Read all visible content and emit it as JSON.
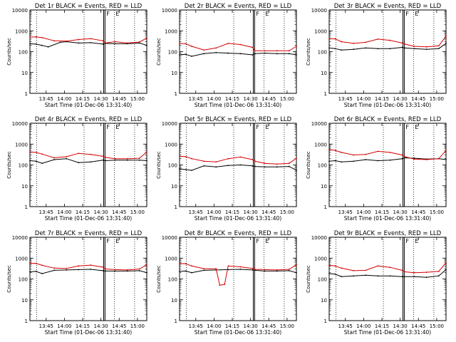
{
  "figure": {
    "ylabel": "Counts/sec",
    "xlabel": "Start Time (01-Dec-06 13:31:40)",
    "time_tick_labels": [
      "13:45",
      "14:00",
      "14:15",
      "14:30",
      "14:45",
      "15:00"
    ],
    "time_tick_minutes": [
      13.33,
      28.33,
      43.33,
      58.33,
      73.33,
      88.33
    ],
    "x_range_minutes": [
      0,
      96
    ],
    "y_tick_labels": [
      "1",
      "10",
      "100",
      "1000",
      "10000"
    ],
    "y_tick_values": [
      1,
      10,
      100,
      1000,
      10000
    ],
    "y_scale": "log",
    "series_colors": {
      "events": "#000000",
      "lld": "#d40000"
    },
    "markers": {
      "dotted_minutes": [
        5.5,
        44.5,
        69.3,
        86
      ],
      "solid_double_minutes": [
        60.6,
        61.7
      ],
      "flag_labels": [
        "F",
        "E"
      ]
    }
  },
  "chart_data": [
    {
      "type": "line",
      "title": "Det 1r BLACK = Events, RED = LLD",
      "ylim": [
        1,
        10000
      ],
      "xlabel": "Start Time (01-Dec-06 13:31:40)",
      "ylabel": "Counts/sec",
      "series": [
        {
          "name": "Events",
          "x": [
            0,
            5,
            10,
            15,
            25,
            30,
            40,
            50,
            60,
            62,
            70,
            80,
            90,
            96
          ],
          "y": [
            240,
            230,
            200,
            170,
            280,
            300,
            260,
            270,
            230,
            250,
            240,
            240,
            260,
            200
          ]
        },
        {
          "name": "LLD",
          "x": [
            0,
            5,
            10,
            20,
            30,
            40,
            50,
            60,
            62,
            70,
            80,
            90,
            96
          ],
          "y": [
            500,
            510,
            470,
            330,
            320,
            380,
            420,
            330,
            260,
            300,
            260,
            290,
            450
          ]
        }
      ]
    },
    {
      "type": "line",
      "title": "Det 2r BLACK = Events, RED = LLD",
      "ylim": [
        1,
        10000
      ],
      "xlabel": "Start Time (01-Dec-06 13:31:40)",
      "ylabel": "Counts/sec",
      "series": [
        {
          "name": "Events",
          "x": [
            0,
            5,
            10,
            20,
            30,
            40,
            50,
            60,
            62,
            70,
            80,
            90,
            96
          ],
          "y": [
            70,
            75,
            60,
            80,
            90,
            85,
            80,
            70,
            80,
            85,
            80,
            80,
            70
          ]
        },
        {
          "name": "LLD",
          "x": [
            0,
            5,
            10,
            20,
            30,
            40,
            50,
            60,
            62,
            70,
            80,
            90,
            96
          ],
          "y": [
            250,
            240,
            180,
            120,
            150,
            250,
            220,
            160,
            110,
            110,
            110,
            110,
            180
          ]
        }
      ]
    },
    {
      "type": "line",
      "title": "Det 3r BLACK = Events, RED = LLD",
      "ylim": [
        1,
        10000
      ],
      "xlabel": "Start Time (01-Dec-06 13:31:40)",
      "ylabel": "Counts/sec",
      "series": [
        {
          "name": "Events",
          "x": [
            0,
            5,
            10,
            20,
            30,
            40,
            50,
            60,
            62,
            70,
            80,
            90,
            96
          ],
          "y": [
            150,
            140,
            120,
            130,
            150,
            140,
            140,
            160,
            150,
            140,
            130,
            140,
            250
          ]
        },
        {
          "name": "LLD",
          "x": [
            0,
            5,
            10,
            20,
            30,
            40,
            50,
            60,
            62,
            70,
            80,
            90,
            96
          ],
          "y": [
            420,
            410,
            300,
            250,
            280,
            400,
            350,
            260,
            230,
            180,
            170,
            190,
            550
          ]
        }
      ]
    },
    {
      "type": "line",
      "title": "Det 4r BLACK = Events, RED = LLD",
      "ylim": [
        1,
        10000
      ],
      "xlabel": "Start Time (01-Dec-06 13:31:40)",
      "ylabel": "Counts/sec",
      "series": [
        {
          "name": "Events",
          "x": [
            0,
            5,
            10,
            20,
            30,
            40,
            50,
            60,
            62,
            70,
            80,
            90,
            96
          ],
          "y": [
            160,
            150,
            120,
            180,
            200,
            130,
            140,
            170,
            160,
            170,
            170,
            170,
            160
          ]
        },
        {
          "name": "LLD",
          "x": [
            0,
            5,
            10,
            20,
            30,
            40,
            50,
            60,
            62,
            70,
            80,
            90,
            96
          ],
          "y": [
            420,
            400,
            330,
            220,
            250,
            360,
            320,
            260,
            230,
            200,
            200,
            210,
            420
          ]
        }
      ]
    },
    {
      "type": "line",
      "title": "Det 5r BLACK = Events, RED = LLD",
      "ylim": [
        1,
        10000
      ],
      "xlabel": "Start Time (01-Dec-06 13:31:40)",
      "ylabel": "Counts/sec",
      "series": [
        {
          "name": "Events",
          "x": [
            0,
            5,
            10,
            20,
            30,
            40,
            50,
            60,
            62,
            70,
            80,
            90,
            96
          ],
          "y": [
            65,
            60,
            55,
            90,
            80,
            95,
            100,
            90,
            85,
            80,
            80,
            85,
            55
          ]
        },
        {
          "name": "LLD",
          "x": [
            0,
            5,
            10,
            20,
            30,
            40,
            50,
            60,
            62,
            70,
            80,
            90,
            96
          ],
          "y": [
            260,
            250,
            200,
            150,
            140,
            200,
            240,
            180,
            150,
            120,
            110,
            120,
            210
          ]
        }
      ]
    },
    {
      "type": "line",
      "title": "Det 6r BLACK = Events, RED = LLD",
      "ylim": [
        1,
        10000
      ],
      "xlabel": "Start Time (01-Dec-06 13:31:40)",
      "ylabel": "Counts/sec",
      "series": [
        {
          "name": "Events",
          "x": [
            0,
            5,
            10,
            20,
            30,
            40,
            50,
            60,
            62,
            70,
            80,
            90,
            96
          ],
          "y": [
            150,
            160,
            140,
            150,
            180,
            160,
            170,
            200,
            220,
            210,
            190,
            200,
            180
          ]
        },
        {
          "name": "LLD",
          "x": [
            0,
            5,
            10,
            20,
            30,
            40,
            50,
            60,
            62,
            70,
            80,
            90,
            96
          ],
          "y": [
            550,
            500,
            400,
            300,
            320,
            450,
            400,
            300,
            250,
            190,
            180,
            200,
            500
          ]
        }
      ]
    },
    {
      "type": "line",
      "title": "Det 7r BLACK = Events, RED = LLD",
      "ylim": [
        1,
        10000
      ],
      "xlabel": "Start Time (01-Dec-06 13:31:40)",
      "ylabel": "Counts/sec",
      "series": [
        {
          "name": "Events",
          "x": [
            0,
            5,
            10,
            20,
            30,
            40,
            50,
            60,
            62,
            70,
            80,
            90,
            96
          ],
          "y": [
            220,
            230,
            180,
            260,
            270,
            280,
            290,
            250,
            240,
            240,
            240,
            250,
            200
          ]
        },
        {
          "name": "LLD",
          "x": [
            0,
            5,
            10,
            20,
            30,
            40,
            50,
            60,
            62,
            70,
            80,
            90,
            96
          ],
          "y": [
            550,
            560,
            450,
            330,
            320,
            420,
            460,
            370,
            300,
            280,
            270,
            300,
            480
          ]
        }
      ]
    },
    {
      "type": "line",
      "title": "Det 8r BLACK = Events, RED = LLD",
      "ylim": [
        1,
        10000
      ],
      "xlabel": "Start Time (01-Dec-06 13:31:40)",
      "ylabel": "Counts/sec",
      "series": [
        {
          "name": "Events",
          "x": [
            0,
            5,
            10,
            20,
            30,
            40,
            50,
            60,
            62,
            70,
            80,
            90,
            96
          ],
          "y": [
            230,
            240,
            200,
            260,
            270,
            280,
            290,
            270,
            260,
            240,
            240,
            250,
            200
          ]
        },
        {
          "name": "LLD",
          "x": [
            0,
            5,
            10,
            20,
            30,
            33,
            37,
            40,
            50,
            60,
            62,
            70,
            80,
            90,
            96
          ],
          "y": [
            550,
            540,
            420,
            310,
            310,
            50,
            55,
            420,
            380,
            320,
            290,
            280,
            270,
            290,
            480
          ]
        }
      ]
    },
    {
      "type": "line",
      "title": "Det 9r BLACK = Events, RED = LLD",
      "ylim": [
        1,
        10000
      ],
      "xlabel": "Start Time (01-Dec-06 13:31:40)",
      "ylabel": "Counts/sec",
      "series": [
        {
          "name": "Events",
          "x": [
            0,
            5,
            10,
            20,
            30,
            40,
            50,
            60,
            62,
            70,
            80,
            90,
            96
          ],
          "y": [
            180,
            170,
            130,
            140,
            150,
            140,
            140,
            130,
            130,
            130,
            120,
            140,
            280
          ]
        },
        {
          "name": "LLD",
          "x": [
            0,
            5,
            10,
            20,
            30,
            40,
            50,
            60,
            62,
            70,
            80,
            90,
            96
          ],
          "y": [
            450,
            420,
            330,
            250,
            260,
            420,
            360,
            260,
            220,
            200,
            210,
            230,
            600
          ]
        }
      ]
    }
  ]
}
